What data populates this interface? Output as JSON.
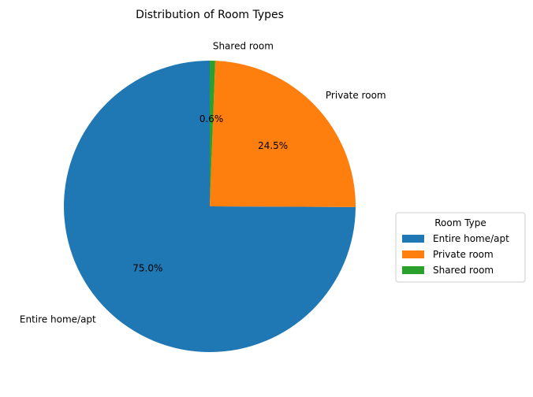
{
  "chart_data": {
    "type": "pie",
    "title": "Distribution of Room Types",
    "categories": [
      "Entire home/apt",
      "Private room",
      "Shared room"
    ],
    "values": [
      75.0,
      24.5,
      0.6
    ],
    "value_labels": [
      "75.0%",
      "24.5%",
      "0.6%"
    ],
    "colors": [
      "#1f77b4",
      "#ff7f0e",
      "#2ca02c"
    ],
    "start_angle_deg": 90,
    "direction": "counterclockwise",
    "legend": {
      "title": "Room Type",
      "placement": "center-right",
      "entries": [
        "Entire home/apt",
        "Private room",
        "Shared room"
      ]
    }
  }
}
